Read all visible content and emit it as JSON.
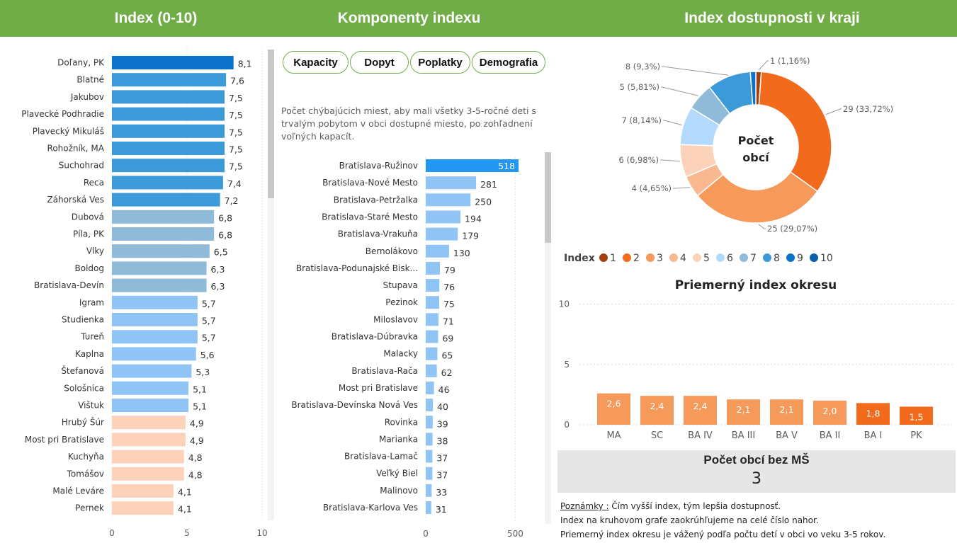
{
  "headers": {
    "index": "Index (0-10)",
    "components": "Komponenty indexu",
    "region": "Index dostupnosti v kraji"
  },
  "buttons": [
    "Kapacity",
    "Dopyt",
    "Poplatky",
    "Demografia"
  ],
  "description": "Počet chýbajúcich miest, aby mali všetky 3-5-ročné deti s trvalým pobytom v obci dostupné miesto, po zohľadnení voľných kapacít.",
  "kpi": {
    "title": "Počet obcí bez MŠ",
    "value": "3"
  },
  "notes": {
    "label": "Poznámky :",
    "line1": " Čím vyšší index, tým lepšia dostupnosť.",
    "line2": "Index na kruhovom grafe zaokrúhľujeme na celé číslo nahor.",
    "line3": "Priemerný index okresu je vážený podľa počtu detí v obci vo veku 3-5 rokov."
  },
  "colors": {
    "header": "#70ad47",
    "c1": "#a3410e",
    "c2": "#f26b1d",
    "c3": "#f59a5b",
    "c4": "#f9b890",
    "c5": "#fcd3ba",
    "c6": "#b3d9fc",
    "c7": "#8fbad8",
    "c8": "#3d9ad9",
    "c9": "#0d72cc",
    "c10": "#0b5ea8"
  },
  "chart_data": [
    {
      "type": "bar",
      "orientation": "horizontal",
      "title": "Index (0-10)",
      "categories": [
        "Doľany, PK",
        "Blatné",
        "Jakubov",
        "Plavecké Podhradie",
        "Plavecký Mikuláš",
        "Rohožník, MA",
        "Suchohrad",
        "Reca",
        "Záhorská Ves",
        "Dubová",
        "Píla, PK",
        "Vlky",
        "Boldog",
        "Bratislava-Devín",
        "Igram",
        "Studienka",
        "Tureň",
        "Kaplna",
        "Štefanová",
        "Sološnica",
        "Vištuk",
        "Hrubý Šúr",
        "Most pri Bratislave",
        "Kuchyňa",
        "Tomášov",
        "Malé Leváre",
        "Pernek"
      ],
      "values": [
        8.1,
        7.6,
        7.5,
        7.5,
        7.5,
        7.5,
        7.5,
        7.4,
        7.2,
        6.8,
        6.8,
        6.5,
        6.3,
        6.3,
        5.7,
        5.7,
        5.7,
        5.6,
        5.3,
        5.1,
        5.1,
        4.9,
        4.9,
        4.8,
        4.8,
        4.1,
        4.1
      ],
      "value_labels": [
        "8,1",
        "7,6",
        "7,5",
        "7,5",
        "7,5",
        "7,5",
        "7,5",
        "7,4",
        "7,2",
        "6,8",
        "6,8",
        "6,5",
        "6,3",
        "6,3",
        "5,7",
        "5,7",
        "5,7",
        "5,6",
        "5,3",
        "5,1",
        "5,1",
        "4,9",
        "4,9",
        "4,8",
        "4,8",
        "4,1",
        "4,1"
      ],
      "xlim": [
        0,
        10
      ],
      "xticks": [
        "0",
        "5",
        "10"
      ]
    },
    {
      "type": "bar",
      "orientation": "horizontal",
      "title": "Kapacity",
      "categories": [
        "Bratislava-Ružinov",
        "Bratislava-Nové Mesto",
        "Bratislava-Petržalka",
        "Bratislava-Staré Mesto",
        "Bratislava-Vrakuňa",
        "Bernolákovo",
        "Bratislava-Podunajské Bisk...",
        "Stupava",
        "Pezinok",
        "Miloslavov",
        "Bratislava-Dúbravka",
        "Malacky",
        "Bratislava-Rača",
        "Most pri Bratislave",
        "Bratislava-Devínska Nová Ves",
        "Rovinka",
        "Marianka",
        "Bratislava-Lamač",
        "Veľký Biel",
        "Malinovo",
        "Bratislava-Karlova Ves"
      ],
      "values": [
        518,
        281,
        250,
        194,
        179,
        130,
        79,
        76,
        75,
        71,
        69,
        65,
        62,
        46,
        40,
        39,
        38,
        37,
        37,
        33,
        31
      ],
      "xlim": [
        0,
        518
      ],
      "xticks": [
        "0",
        "500"
      ]
    },
    {
      "type": "pie",
      "title": "Index dostupnosti v kraji",
      "center_label": [
        "Počet",
        "obcí"
      ],
      "legend_title": "Index",
      "categories": [
        "1",
        "2",
        "3",
        "4",
        "5",
        "6",
        "7",
        "8",
        "9",
        "10"
      ],
      "values": [
        1,
        29,
        25,
        4,
        6,
        7,
        5,
        8,
        1,
        0
      ],
      "labels": [
        "1 (1,16%)",
        "29 (33,72%)",
        "25 (29,07%)",
        "4 (4,65%)",
        "6 (6,98%)",
        "7 (8,14%)",
        "5 (5,81%)",
        "8 (9,3%)",
        "",
        ""
      ]
    },
    {
      "type": "bar",
      "orientation": "vertical",
      "title": "Priemerný index okresu",
      "categories": [
        "MA",
        "SC",
        "BA IV",
        "BA III",
        "BA V",
        "BA II",
        "BA I",
        "PK"
      ],
      "values": [
        2.6,
        2.4,
        2.4,
        2.1,
        2.1,
        2.0,
        1.8,
        1.5
      ],
      "value_labels": [
        "2,6",
        "2,4",
        "2,4",
        "2,1",
        "2,1",
        "2,0",
        "1,8",
        "1,5"
      ],
      "ylim": [
        0,
        10
      ],
      "yticks": [
        "0",
        "5",
        "10"
      ]
    }
  ]
}
